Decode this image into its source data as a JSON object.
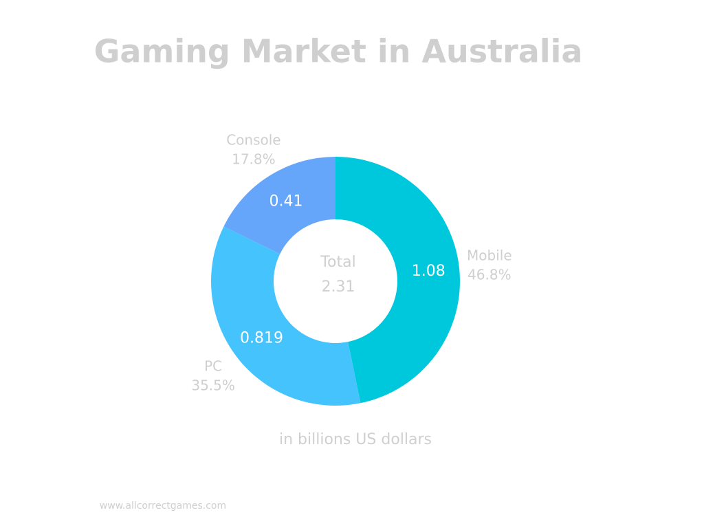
{
  "chart_data": {
    "type": "donut",
    "title": "Gaming Market in Australia",
    "subtitle": "in billions US dollars",
    "categories": [
      "Mobile",
      "PC",
      "Console"
    ],
    "values": [
      1.08,
      0.819,
      0.41
    ],
    "percents": [
      46.8,
      35.5,
      17.8
    ],
    "percent_labels": [
      "46.8%",
      "35.5%",
      "17.8%"
    ],
    "colors": [
      "#00c8dc",
      "#45c3fd",
      "#66a6fa"
    ],
    "total_label": "Total",
    "total": 2.31,
    "footer": "www.allcorrectgames.com"
  }
}
